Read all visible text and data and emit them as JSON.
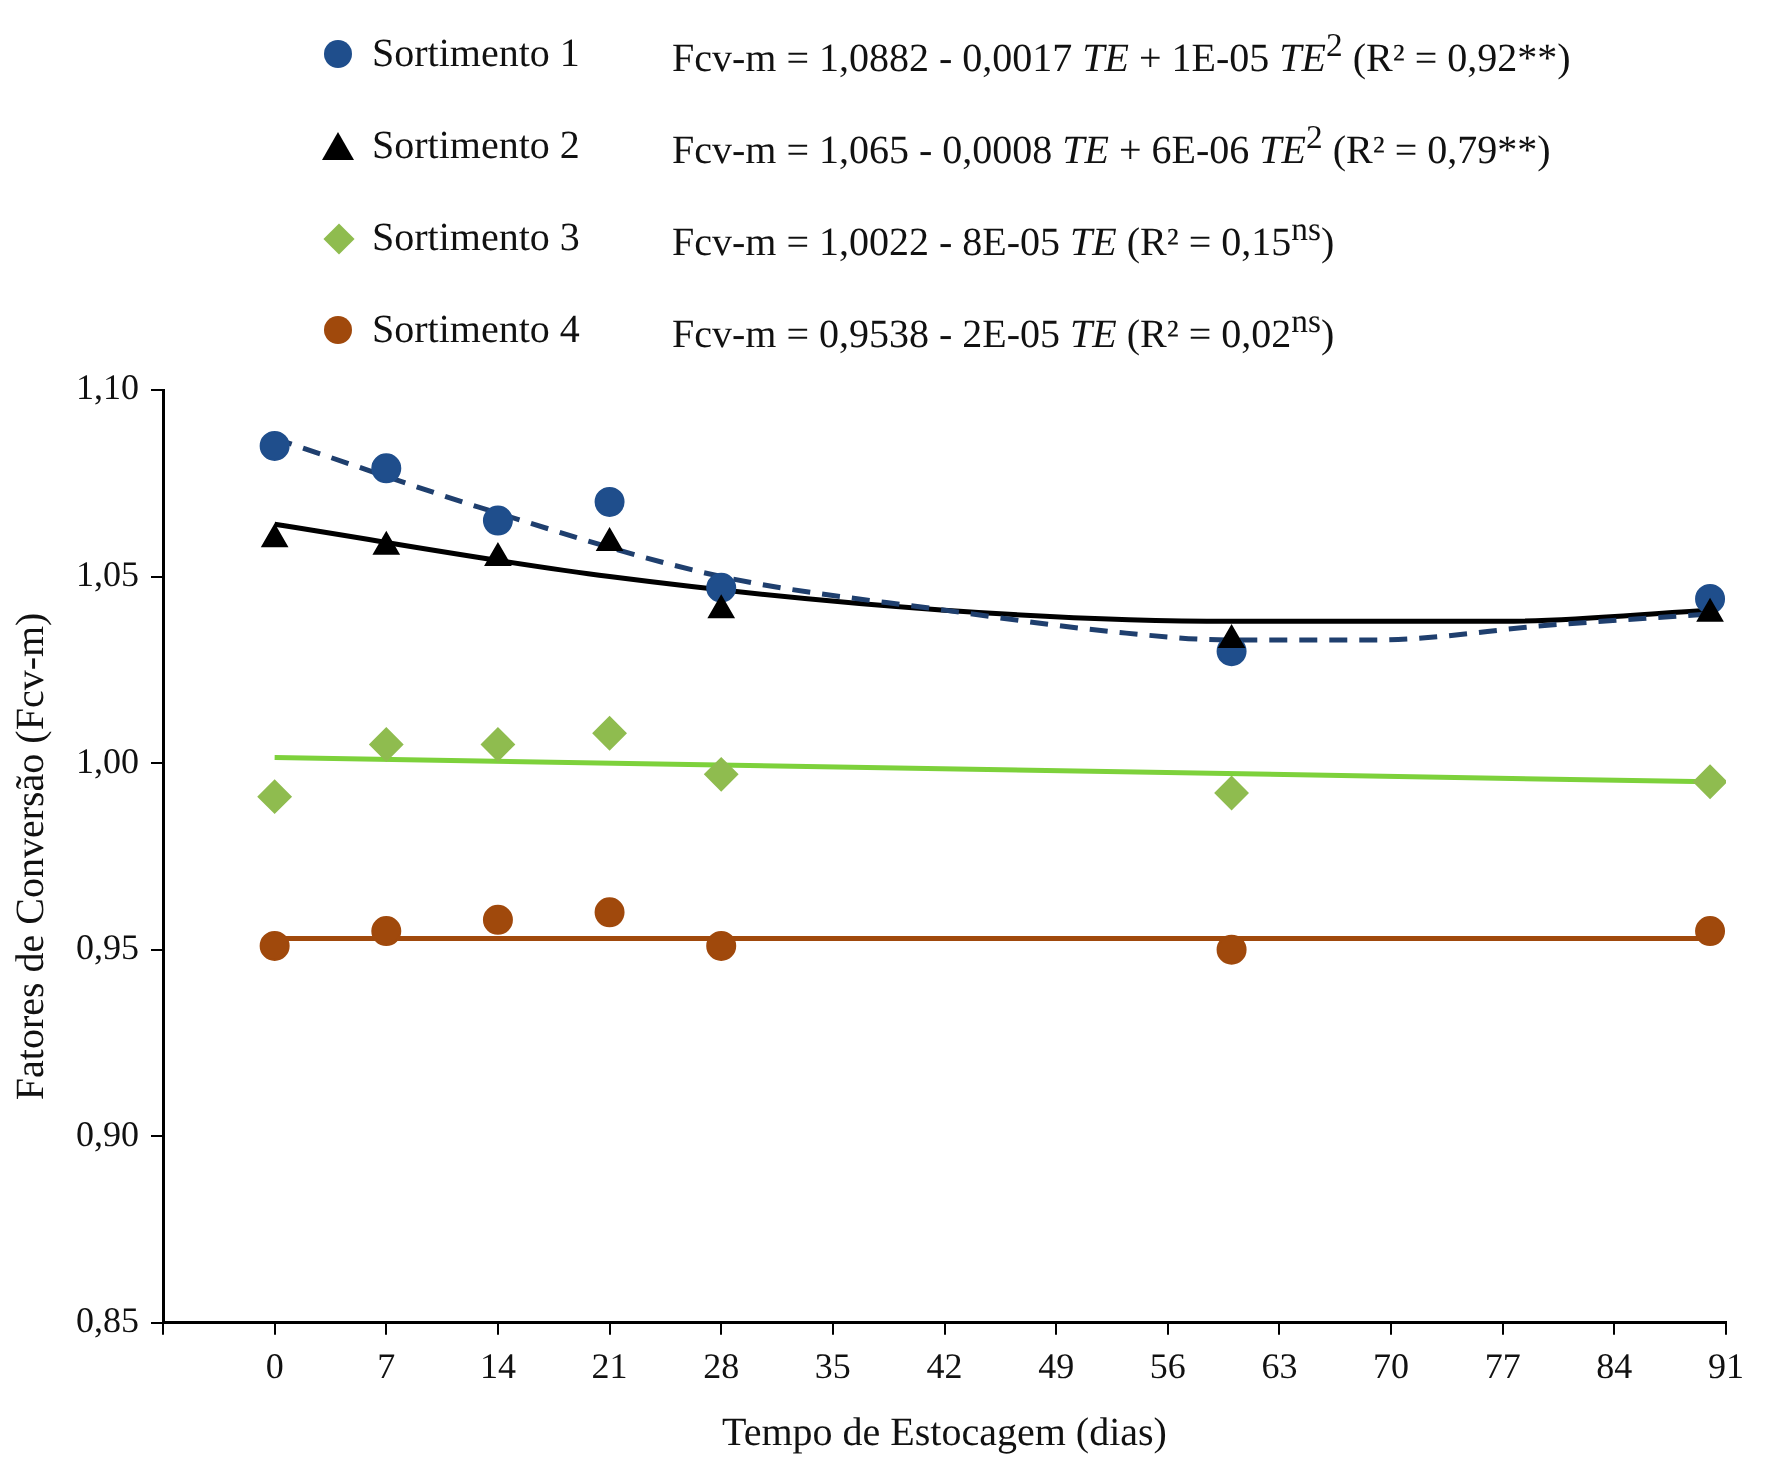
{
  "chart_data": {
    "type": "scatter",
    "xlabel": "Tempo de Estocagem (dias)",
    "ylabel": "Fatores de Conversão (Fcv-m)",
    "xlim": [
      -7,
      91
    ],
    "xticks": [
      {
        "value": -7,
        "label": null
      },
      0,
      7,
      14,
      21,
      28,
      35,
      42,
      49,
      56,
      63,
      70,
      77,
      84,
      91
    ],
    "ylim": [
      0.85,
      1.1
    ],
    "yticks": [
      {
        "value": 0.85,
        "label": "0,85"
      },
      {
        "value": 0.9,
        "label": "0,90"
      },
      {
        "value": 0.95,
        "label": "0,95"
      },
      {
        "value": 1.0,
        "label": "1,00"
      },
      {
        "value": 1.05,
        "label": "1,05"
      },
      {
        "value": 1.1,
        "label": "1,10"
      }
    ],
    "legend": "top left",
    "annotations": [
      "Fcv-m = 1,0882 - 0,0017 TE  + 1E-05 TE$^{2}$ (R² = 0,92**)",
      "Fcv-m = 1,065 - 0,0008 TE + 6E-06 TE$^{2}$ (R² = 0,79**)",
      "Fcv-m = 1,0022 - 8E-05 TE  (R² = 0,15$^{ns}$)",
      "Fcv-m = 0,9538 - 2E-05 TE (R² = 0,02$^{ns}$)"
    ],
    "series": [
      {
        "type": "line",
        "color": "#1f3f6e",
        "line_style": "dashed",
        "marker": "none",
        "x": [
          0,
          14,
          28,
          42,
          53,
          60,
          69,
          80,
          90
        ],
        "values": [
          1.087,
          1.067,
          1.05,
          1.041,
          1.035,
          1.033,
          1.033,
          1.037,
          1.04
        ]
      },
      {
        "type": "line",
        "color": "#000000",
        "line_style": "solid",
        "marker": "none",
        "x": [
          0,
          21,
          42,
          60,
          77,
          90
        ],
        "values": [
          1.064,
          1.05,
          1.041,
          1.038,
          1.038,
          1.041
        ]
      },
      {
        "type": "line",
        "color": "#7dd13b",
        "line_style": "solid",
        "marker": "none",
        "x": [
          0,
          90
        ],
        "values": [
          1.0015,
          0.995
        ]
      },
      {
        "type": "line",
        "color": "#a0490c",
        "line_style": "solid",
        "marker": "none",
        "x": [
          0,
          90
        ],
        "values": [
          0.953,
          0.953
        ]
      },
      {
        "name": "Sortimento 1",
        "type": "scatter",
        "color": "#1f4e8c",
        "marker": "circle",
        "x": [
          0,
          7,
          14,
          21,
          28,
          60,
          90
        ],
        "values": [
          1.085,
          1.079,
          1.065,
          1.07,
          1.047,
          1.03,
          1.044
        ]
      },
      {
        "name": "Sortimento 2",
        "type": "scatter",
        "color": "#000000",
        "marker": "triangle",
        "x": [
          0,
          7,
          14,
          21,
          28,
          60,
          90
        ],
        "values": [
          1.06,
          1.058,
          1.055,
          1.059,
          1.041,
          1.033,
          1.04
        ]
      },
      {
        "name": "Sortimento 3",
        "type": "scatter",
        "color": "#8fbc4f",
        "marker": "diamond",
        "x": [
          0,
          7,
          14,
          21,
          28,
          60,
          90
        ],
        "values": [
          0.991,
          1.005,
          1.005,
          1.008,
          0.997,
          0.992,
          0.995
        ]
      },
      {
        "name": "Sortimento 4",
        "type": "scatter",
        "color": "#a0490c",
        "marker": "circle",
        "x": [
          0,
          7,
          14,
          21,
          28,
          60,
          90
        ],
        "values": [
          0.951,
          0.955,
          0.958,
          0.96,
          0.951,
          0.95,
          0.955
        ]
      }
    ]
  }
}
